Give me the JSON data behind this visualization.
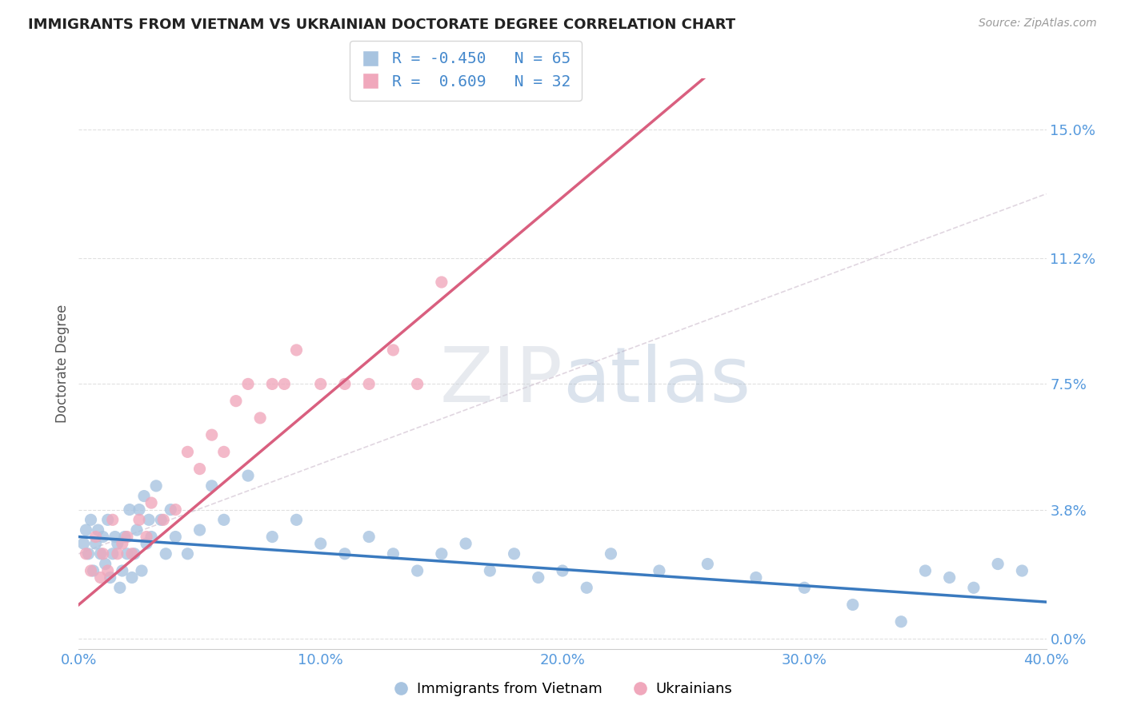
{
  "title": "IMMIGRANTS FROM VIETNAM VS UKRAINIAN DOCTORATE DEGREE CORRELATION CHART",
  "source": "Source: ZipAtlas.com",
  "ylabel": "Doctorate Degree",
  "ytick_values": [
    0.0,
    3.8,
    7.5,
    11.2,
    15.0
  ],
  "xlim": [
    0.0,
    40.0
  ],
  "ylim": [
    -0.3,
    16.5
  ],
  "vietnam_color": "#a8c4e0",
  "ukraine_color": "#f0a8bc",
  "vietnam_trendline_color": "#3a7abf",
  "ukraine_trendline_color": "#d95f7f",
  "dash_color": "#ccbbcc",
  "background_color": "#ffffff",
  "grid_color": "#cccccc",
  "axis_label_color": "#5599dd",
  "title_color": "#222222",
  "vietnam_x": [
    0.2,
    0.3,
    0.4,
    0.5,
    0.6,
    0.7,
    0.8,
    0.9,
    1.0,
    1.1,
    1.2,
    1.3,
    1.4,
    1.5,
    1.6,
    1.7,
    1.8,
    1.9,
    2.0,
    2.1,
    2.2,
    2.3,
    2.4,
    2.5,
    2.6,
    2.7,
    2.8,
    2.9,
    3.0,
    3.2,
    3.4,
    3.6,
    3.8,
    4.0,
    4.5,
    5.0,
    5.5,
    6.0,
    7.0,
    8.0,
    9.0,
    10.0,
    11.0,
    12.0,
    13.0,
    14.0,
    15.0,
    16.0,
    17.0,
    18.0,
    19.0,
    20.0,
    21.0,
    22.0,
    24.0,
    26.0,
    28.0,
    30.0,
    32.0,
    34.0,
    35.0,
    36.0,
    37.0,
    38.0,
    39.0
  ],
  "vietnam_y": [
    2.8,
    3.2,
    2.5,
    3.5,
    2.0,
    2.8,
    3.2,
    2.5,
    3.0,
    2.2,
    3.5,
    1.8,
    2.5,
    3.0,
    2.8,
    1.5,
    2.0,
    3.0,
    2.5,
    3.8,
    1.8,
    2.5,
    3.2,
    3.8,
    2.0,
    4.2,
    2.8,
    3.5,
    3.0,
    4.5,
    3.5,
    2.5,
    3.8,
    3.0,
    2.5,
    3.2,
    4.5,
    3.5,
    4.8,
    3.0,
    3.5,
    2.8,
    2.5,
    3.0,
    2.5,
    2.0,
    2.5,
    2.8,
    2.0,
    2.5,
    1.8,
    2.0,
    1.5,
    2.5,
    2.0,
    2.2,
    1.8,
    1.5,
    1.0,
    0.5,
    2.0,
    1.8,
    1.5,
    2.2,
    2.0
  ],
  "ukraine_x": [
    0.3,
    0.5,
    0.7,
    0.9,
    1.0,
    1.2,
    1.4,
    1.6,
    1.8,
    2.0,
    2.2,
    2.5,
    2.8,
    3.0,
    3.5,
    4.0,
    4.5,
    5.0,
    5.5,
    6.0,
    6.5,
    7.0,
    7.5,
    8.0,
    8.5,
    9.0,
    10.0,
    11.0,
    12.0,
    13.0,
    14.0,
    15.0
  ],
  "ukraine_y": [
    2.5,
    2.0,
    3.0,
    1.8,
    2.5,
    2.0,
    3.5,
    2.5,
    2.8,
    3.0,
    2.5,
    3.5,
    3.0,
    4.0,
    3.5,
    3.8,
    5.5,
    5.0,
    6.0,
    5.5,
    7.0,
    7.5,
    6.5,
    7.5,
    7.5,
    8.5,
    7.5,
    7.5,
    7.5,
    8.5,
    7.5,
    10.5
  ]
}
